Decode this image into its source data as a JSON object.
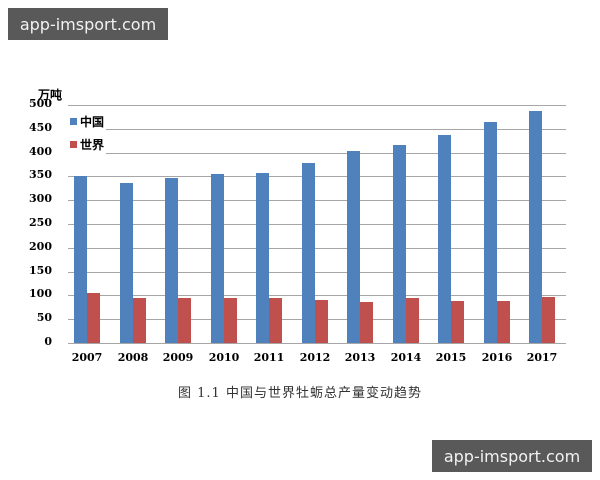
{
  "watermarks": {
    "top": "app-imsport.com",
    "bottom": "app-imsport.com"
  },
  "chart_data": {
    "type": "bar",
    "title": "",
    "caption": "图 1.1    中国与世界牡蛎总产量变动趋势",
    "xlabel": "",
    "ylabel": "万吨",
    "ylim": [
      0,
      500
    ],
    "yticks": [
      0,
      50,
      100,
      150,
      200,
      250,
      300,
      350,
      400,
      450,
      500
    ],
    "grid": true,
    "legend_position": "top-left",
    "categories": [
      "2007",
      "2008",
      "2009",
      "2010",
      "2011",
      "2012",
      "2013",
      "2014",
      "2015",
      "2016",
      "2017"
    ],
    "series": [
      {
        "name": "中国",
        "color": "#4f81bd",
        "values": [
          350,
          336,
          347,
          354,
          358,
          379,
          404,
          416,
          438,
          465,
          488
        ]
      },
      {
        "name": "世界",
        "color": "#c0504d",
        "values": [
          105,
          94,
          94,
          94,
          94,
          90,
          86,
          94,
          88,
          88,
          97
        ]
      }
    ]
  }
}
